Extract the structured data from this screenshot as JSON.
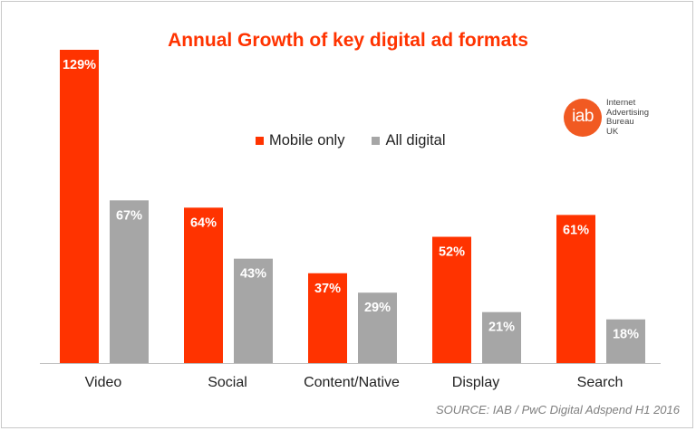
{
  "chart_data": {
    "type": "bar",
    "title": "Annual Growth of key digital ad formats",
    "categories": [
      "Video",
      "Social",
      "Content/Native",
      "Display",
      "Search"
    ],
    "series": [
      {
        "name": "Mobile only",
        "color": "#ff3300",
        "values": [
          129,
          64,
          37,
          52,
          61
        ],
        "labels": [
          "129%",
          "64%",
          "37%",
          "52%",
          "61%"
        ]
      },
      {
        "name": "All digital",
        "color": "#a6a6a6",
        "values": [
          67,
          43,
          29,
          21,
          18
        ],
        "labels": [
          "67%",
          "43%",
          "29%",
          "21%",
          "18%"
        ]
      }
    ],
    "ylim": [
      0,
      129
    ],
    "grid": false,
    "legend": "top-center",
    "source": "SOURCE: IAB / PwC Digital Adspend H1 2016"
  },
  "logo": {
    "mark": "iab",
    "lines": [
      "Internet",
      "Advertising",
      "Bureau",
      "UK"
    ],
    "color": "#f15a22"
  }
}
